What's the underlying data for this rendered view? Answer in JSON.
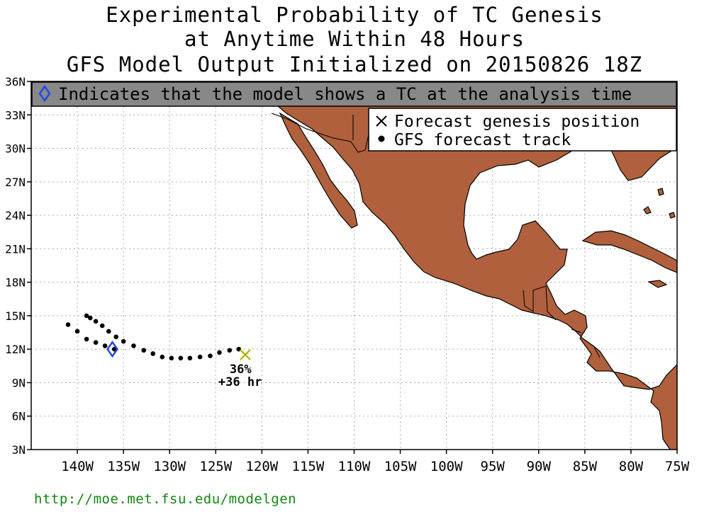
{
  "title": {
    "line1": "Experimental Probability of TC Genesis",
    "line2": "at Anytime Within 48 Hours",
    "line3": "GFS Model Output Initialized on 20150826 18Z"
  },
  "banner": {
    "text": "Indicates that the model shows a TC at the analysis time",
    "icon": "blue-diamond-icon",
    "background": "#888888"
  },
  "legend": {
    "items": [
      {
        "symbol": "x-mark-icon",
        "label": "Forecast genesis position"
      },
      {
        "symbol": "dot-icon",
        "label": "GFS forecast track"
      }
    ]
  },
  "map": {
    "lon_range": [
      -145,
      -75
    ],
    "lat_range": [
      3,
      36
    ],
    "land_color": "#b0603c",
    "x_ticks": [
      "140W",
      "135W",
      "130W",
      "125W",
      "120W",
      "115W",
      "110W",
      "105W",
      "100W",
      "95W",
      "90W",
      "85W",
      "80W",
      "75W"
    ],
    "y_ticks": [
      "36N",
      "33N",
      "30N",
      "27N",
      "24N",
      "21N",
      "18N",
      "15N",
      "12N",
      "9N",
      "6N",
      "3N"
    ],
    "track": [
      [
        -141.0,
        14.2
      ],
      [
        -140.0,
        13.6
      ],
      [
        -139.0,
        12.9
      ],
      [
        -138.0,
        12.6
      ],
      [
        -137.0,
        12.3
      ],
      [
        -136.0,
        12.0
      ],
      [
        -139.0,
        15.0
      ],
      [
        -138.6,
        14.8
      ],
      [
        -138.0,
        14.5
      ],
      [
        -137.3,
        14.1
      ],
      [
        -136.6,
        13.6
      ],
      [
        -135.8,
        13.1
      ],
      [
        -135.0,
        12.7
      ],
      [
        -133.9,
        12.3
      ],
      [
        -132.8,
        11.9
      ],
      [
        -131.8,
        11.6
      ],
      [
        -130.8,
        11.3
      ],
      [
        -129.8,
        11.2
      ],
      [
        -128.8,
        11.2
      ],
      [
        -127.8,
        11.2
      ],
      [
        -126.7,
        11.3
      ],
      [
        -125.6,
        11.4
      ],
      [
        -124.6,
        11.7
      ],
      [
        -123.5,
        11.9
      ],
      [
        -122.5,
        12.0
      ]
    ],
    "genesis": {
      "lon": -121.8,
      "lat": 11.5,
      "probability": "36%",
      "lead_time": "+36 hr",
      "color": "#eeee44"
    },
    "analysis_tc": {
      "lon": -136.2,
      "lat": 12.0,
      "color": "#2244ee"
    }
  },
  "footer": {
    "url": "http://moe.met.fsu.edu/modelgen"
  }
}
